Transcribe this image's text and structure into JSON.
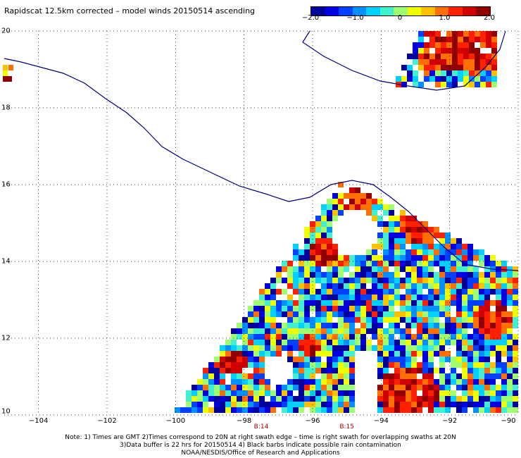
{
  "title": "Rapidscat 12.5km corrected – model winds 20150514 ascending",
  "colorbar": {
    "labels": [
      "−2.0",
      "−1.0",
      "0",
      "1.0",
      "2.0"
    ],
    "values": [
      -2.0,
      -1.0,
      0,
      1.0,
      2.0
    ],
    "colors": [
      "#00009a",
      "#0000e0",
      "#0040ff",
      "#0090ff",
      "#00d0ff",
      "#40f0d0",
      "#a0ff70",
      "#f0ff00",
      "#ffc000",
      "#ff7000",
      "#ff2000",
      "#d00000",
      "#900000"
    ]
  },
  "map": {
    "lat_ticks": [
      {
        "v": 10,
        "label": "10"
      },
      {
        "v": 12,
        "label": "12"
      },
      {
        "v": 14,
        "label": "14"
      },
      {
        "v": 16,
        "label": "16"
      },
      {
        "v": 18,
        "label": "18"
      },
      {
        "v": 20,
        "label": "20"
      }
    ],
    "lon_ticks": [
      {
        "v": -104,
        "label": "−104"
      },
      {
        "v": -102,
        "label": "−102"
      },
      {
        "v": -100,
        "label": "−100"
      },
      {
        "v": -98,
        "label": "−98"
      },
      {
        "v": -96,
        "label": "−96"
      },
      {
        "v": -94,
        "label": "−94"
      },
      {
        "v": -92,
        "label": "−92"
      },
      {
        "v": -90,
        "label": "−90"
      }
    ],
    "lon_range": [
      -105,
      -90
    ],
    "lat_range": [
      10,
      20
    ],
    "revolutions": [
      {
        "label": "B:14",
        "lon": -97.5
      },
      {
        "label": "B:15",
        "lon": -95.0
      }
    ],
    "grid": "dotted"
  },
  "notes": {
    "line1": "Note: 1) Times are GMT 2)Times correspond to 20N at right swath edge – time is right swath for overlapping swaths at 20N",
    "line2": "3)Data buffer is 22 hrs for 20150514 4) Black barbs indicate possible rain contamination",
    "line3": "NOAA/NESDIS/Office of Research and Applications"
  }
}
